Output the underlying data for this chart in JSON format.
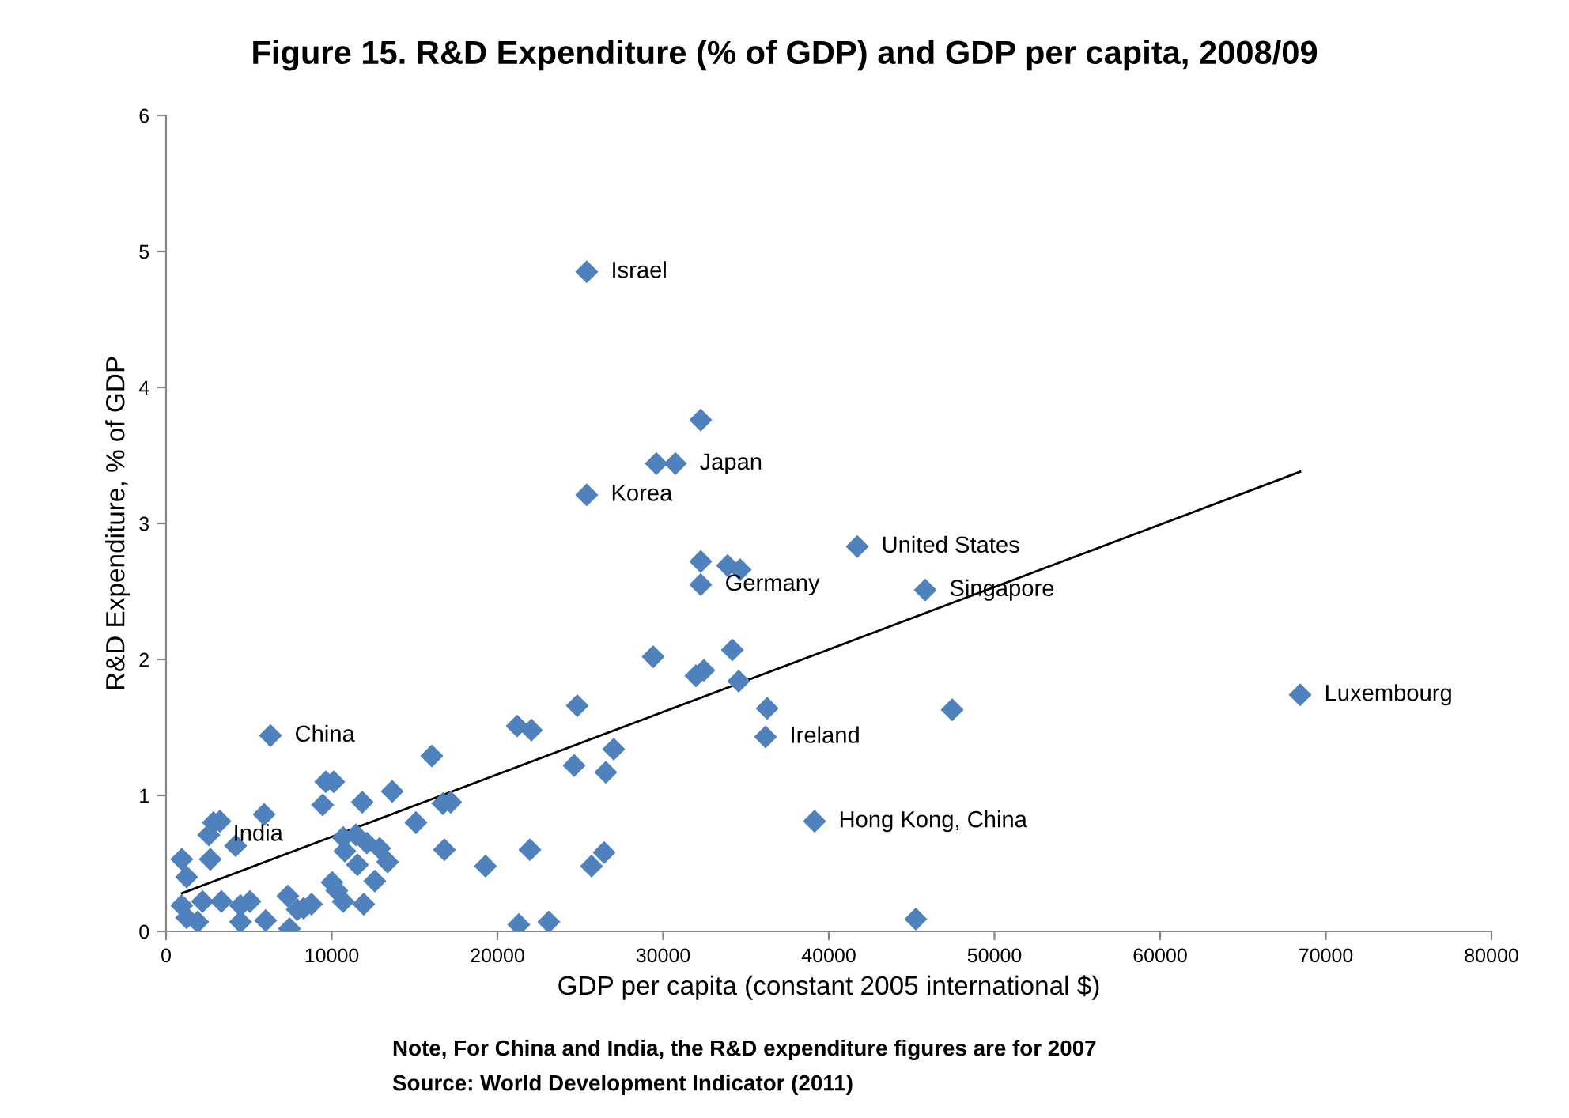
{
  "chart_data": {
    "type": "scatter",
    "title": "Figure 15. R&D Expenditure (% of GDP) and GDP per capita, 2008/09",
    "xlabel": "GDP per capita (constant 2005 international $)",
    "ylabel": "R&D Expenditure, % of GDP",
    "series": [
      {
        "color": "#4f81bd",
        "marker": "diamond",
        "x": [
          6300,
          9640,
          10120,
          16040,
          13650,
          9450,
          11840,
          5920,
          2860,
          3250,
          2580,
          4200,
          950,
          2670,
          1240,
          10690,
          11460,
          12120,
          12890,
          10790,
          13370,
          11550,
          12600,
          15080,
          16710,
          17180,
          16800,
          19280,
          21960,
          21290,
          23100,
          950,
          1240,
          1910,
          2200,
          3340,
          4490,
          4490,
          5060,
          6010,
          7350,
          7450,
          7920,
          8300,
          8780,
          10020,
          10310,
          10690,
          11930,
          29400,
          31980,
          32460,
          34180,
          34560,
          36280,
          36180,
          39140,
          24820,
          21190,
          22050,
          24630,
          27020,
          26540,
          26440,
          25680,
          25390,
          32270,
          29590,
          30740,
          25390,
          32270,
          33890,
          34650,
          32270,
          41720,
          45820,
          68450,
          47450,
          45250
        ],
        "values": [
          1.44,
          1.1,
          1.1,
          1.29,
          1.03,
          0.93,
          0.95,
          0.86,
          0.8,
          0.81,
          0.71,
          0.63,
          0.53,
          0.53,
          0.4,
          0.69,
          0.71,
          0.65,
          0.61,
          0.59,
          0.51,
          0.49,
          0.37,
          0.8,
          0.94,
          0.95,
          0.6,
          0.48,
          0.6,
          0.05,
          0.07,
          0.19,
          0.1,
          0.07,
          0.22,
          0.22,
          0.19,
          0.07,
          0.22,
          0.08,
          0.26,
          0.02,
          0.16,
          0.17,
          0.2,
          0.36,
          0.3,
          0.22,
          0.2,
          2.02,
          1.88,
          1.92,
          2.07,
          1.84,
          1.64,
          1.43,
          0.81,
          1.66,
          1.51,
          1.48,
          1.22,
          1.34,
          1.17,
          0.58,
          0.48,
          4.85,
          3.76,
          3.44,
          3.44,
          3.21,
          2.72,
          2.69,
          2.66,
          2.55,
          2.83,
          2.51,
          1.74,
          1.63,
          0.09
        ]
      },
      {
        "type": "line",
        "color": "#000000",
        "marker": "none",
        "x": [
          955,
          68450
        ],
        "values": [
          0.28,
          3.38
        ]
      }
    ],
    "xlim": [
      0,
      80000
    ],
    "ylim": [
      0,
      6
    ],
    "xticks": [
      0,
      10000,
      20000,
      30000,
      40000,
      50000,
      60000,
      70000,
      80000
    ],
    "yticks": [
      0,
      1,
      2,
      3,
      4,
      5,
      6
    ],
    "grid": false,
    "legend": false,
    "annotations": [
      {
        "text": "Israel",
        "x": 25390,
        "y": 4.85
      },
      {
        "text": "Japan",
        "x": 30740,
        "y": 3.44
      },
      {
        "text": "Korea",
        "x": 25390,
        "y": 3.21
      },
      {
        "text": "United States",
        "x": 41720,
        "y": 2.83
      },
      {
        "text": "Germany",
        "x": 32270,
        "y": 2.55
      },
      {
        "text": "Singapore",
        "x": 45820,
        "y": 2.51
      },
      {
        "text": "Luxembourg",
        "x": 68450,
        "y": 1.74
      },
      {
        "text": "China",
        "x": 6300,
        "y": 1.44
      },
      {
        "text": "Ireland",
        "x": 36180,
        "y": 1.43
      },
      {
        "text": "India",
        "x": 2580,
        "y": 0.71
      },
      {
        "text": "Hong Kong, China",
        "x": 39140,
        "y": 0.81
      },
      "Note, For China and India, the R&D expenditure figures are for 2007",
      "Source: World Development Indicator (2011)"
    ]
  }
}
